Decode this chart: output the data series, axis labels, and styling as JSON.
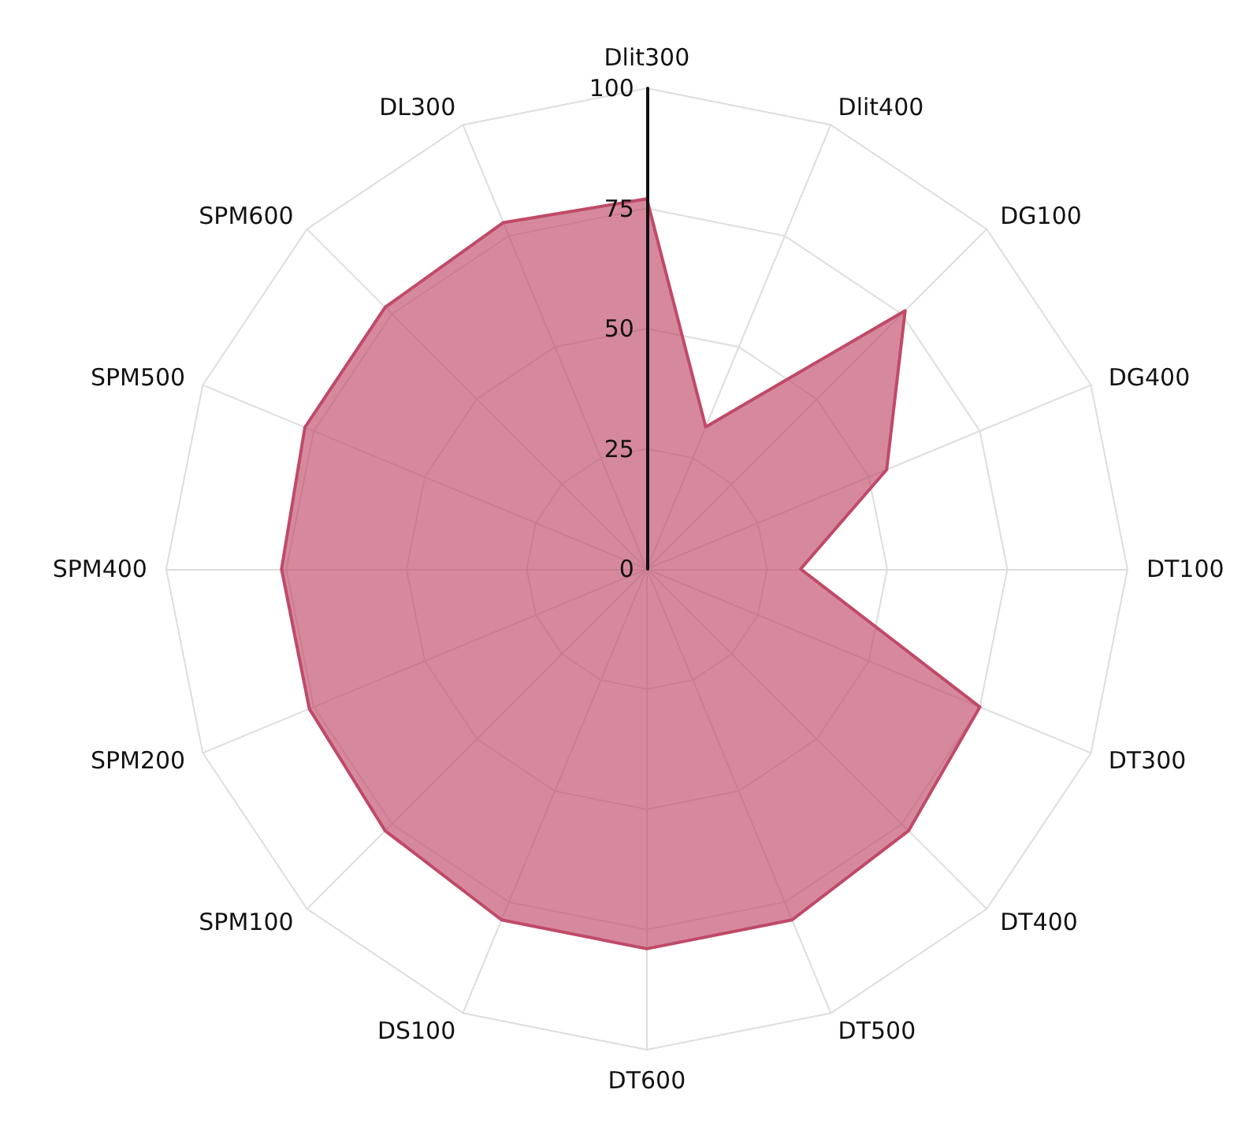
{
  "chart_data": {
    "type": "radar",
    "categories": [
      "Dlit300",
      "Dlit400",
      "DG100",
      "DG400",
      "DT100",
      "DT300",
      "DT400",
      "DT500",
      "DT600",
      "DS100",
      "SPM100",
      "SPM200",
      "SPM400",
      "SPM500",
      "SPM600",
      "DL300"
    ],
    "series": [
      {
        "color": "#c04a68",
        "values": [
          77,
          32,
          76,
          54,
          32,
          75,
          77,
          79,
          79,
          79,
          77,
          76,
          76,
          77,
          77,
          78
        ]
      }
    ],
    "ylim": [
      0,
      100
    ],
    "yticks": [
      0,
      25,
      50,
      75,
      100
    ],
    "grid": true,
    "marker": "none"
  }
}
